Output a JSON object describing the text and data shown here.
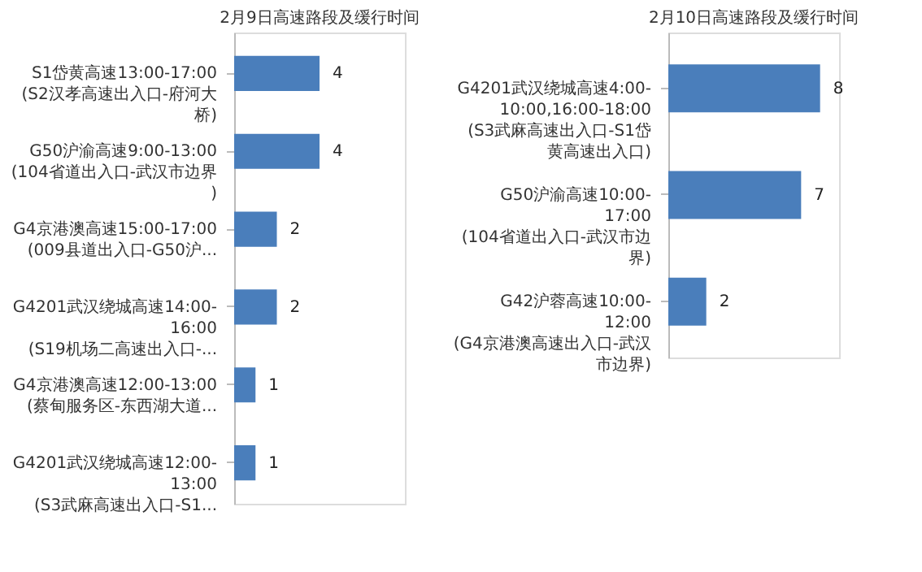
{
  "chart_data": [
    {
      "type": "bar",
      "orientation": "horizontal",
      "title": "2月9日高速路段及缓行时间",
      "categories": [
        "S1岱黄高速13:00-17:00(S2汉孝高速出入口-府河大桥)",
        "G50沪渝高速9:00-13:00(104省道出入口-武汉市边界)",
        "G4京港澳高速15:00-17:00(009县道出入口-G50沪...",
        "G4201武汉绕城高速14:00-16:00(S19机场二高速出入口-...",
        "G4京港澳高速12:00-13:00(蔡甸服务区-东西湖大道...",
        "G4201武汉绕城高速12:00-13:00(S3武麻高速出入口-S1..."
      ],
      "values": [
        4,
        4,
        2,
        2,
        1,
        1
      ],
      "color": "#4a7ebb",
      "xlim": [
        0,
        8
      ],
      "data_labels": true,
      "tick_labels": "y"
    },
    {
      "type": "bar",
      "orientation": "horizontal",
      "title": "2月10日高速路段及缓行时间",
      "categories": [
        "G4201武汉绕城高速4:00-10:00,16:00-18:00(S3武麻高速出入口-S1岱黄高速出入口)",
        "G50沪渝高速10:00-17:00(104省道出入口-武汉市边界)",
        "G42沪蓉高速10:00-12:00(G4京港澳高速出入口-武汉市边界)"
      ],
      "values": [
        8,
        7,
        2
      ],
      "color": "#4a7ebb",
      "xlim": [
        0,
        9
      ],
      "data_labels": true,
      "tick_labels": "y"
    }
  ]
}
